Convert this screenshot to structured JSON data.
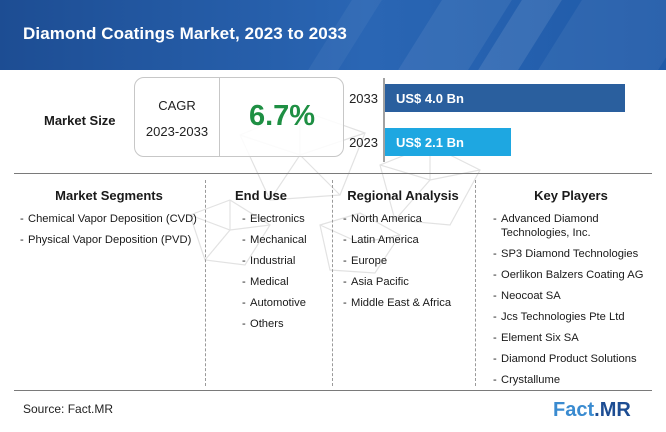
{
  "header": {
    "title": "Diamond Coatings Market, 2023 to 2033"
  },
  "market_size": {
    "label": "Market Size",
    "cagr_label": "CAGR",
    "cagr_period": "2023-2033",
    "cagr_value": "6.7%"
  },
  "chart_data": {
    "type": "bar",
    "orientation": "horizontal",
    "categories": [
      "2033",
      "2023"
    ],
    "values": [
      4.0,
      2.1
    ],
    "value_labels": [
      "US$ 4.0 Bn",
      "US$ 2.1 Bn"
    ],
    "title": "",
    "xlabel": "",
    "ylabel": "",
    "xlim": [
      0,
      4.0
    ],
    "grid": false,
    "legend": "none",
    "colors": [
      "#2a5f9e",
      "#1ea7e1"
    ]
  },
  "segments": {
    "heading": "Market Segments",
    "items": [
      "Chemical Vapor Deposition (CVD)",
      "Physical Vapor Deposition (PVD)"
    ]
  },
  "end_use": {
    "heading": "End Use",
    "items": [
      "Electronics",
      "Mechanical",
      "Industrial",
      "Medical",
      "Automotive",
      "Others"
    ]
  },
  "regional": {
    "heading": "Regional Analysis",
    "items": [
      "North America",
      "Latin America",
      "Europe",
      "Asia Pacific",
      "Middle East & Africa"
    ]
  },
  "players": {
    "heading": "Key Players",
    "first_item_line1": "Advanced Diamond",
    "first_item_line2": "Technologies, Inc.",
    "items": [
      "SP3 Diamond Technologies",
      "Oerlikon Balzers Coating AG",
      "Neocoat SA",
      "Jcs Technologies Pte Ltd",
      "Element Six SA",
      "Diamond Product Solutions",
      "Crystallume"
    ]
  },
  "footer": {
    "source": "Source: Fact.MR",
    "logo_part1": "Fact",
    "logo_part2": ".",
    "logo_part3": "MR"
  },
  "colors": {
    "banner": "#2a66b4",
    "cagr_green": "#1e8f43",
    "bar_2033": "#2a5f9e",
    "bar_2023": "#1ea7e1"
  }
}
